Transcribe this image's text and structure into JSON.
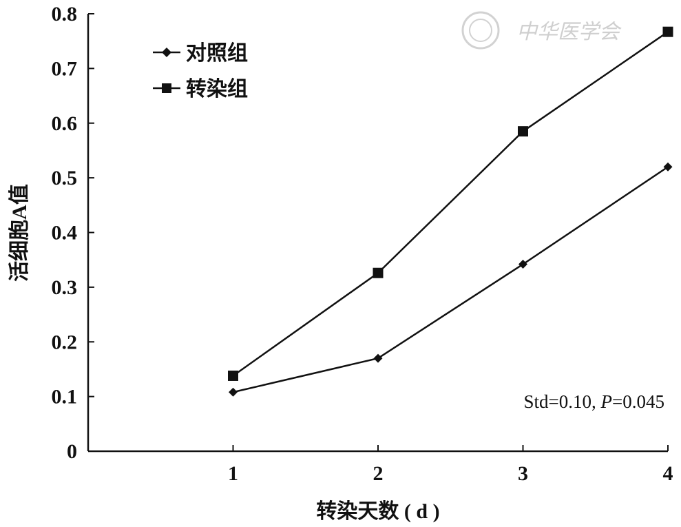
{
  "chart_data": {
    "type": "line",
    "x": [
      1,
      2,
      3,
      4
    ],
    "series": [
      {
        "name": "对照组",
        "marker": "diamond",
        "values": [
          0.108,
          0.17,
          0.342,
          0.52
        ]
      },
      {
        "name": "转染组",
        "marker": "square",
        "values": [
          0.138,
          0.326,
          0.585,
          0.767
        ]
      }
    ],
    "xlabel": "转染天数 ( d )",
    "ylabel": "活细胞A值",
    "xticks": [
      "1",
      "2",
      "3",
      "4"
    ],
    "yticks": [
      "0",
      "0.1",
      "0.2",
      "0.3",
      "0.4",
      "0.5",
      "0.6",
      "0.7",
      "0.8"
    ],
    "xlim": [
      0,
      4
    ],
    "ylim": [
      0,
      0.8
    ],
    "grid": false,
    "legend_position": "top-left",
    "annotation": {
      "prefix": "Std=0.10, ",
      "p_label": "P",
      "suffix": "=0.045"
    },
    "watermark": "中华医学会",
    "colors": {
      "line": "#111111",
      "marker": "#111111"
    }
  }
}
